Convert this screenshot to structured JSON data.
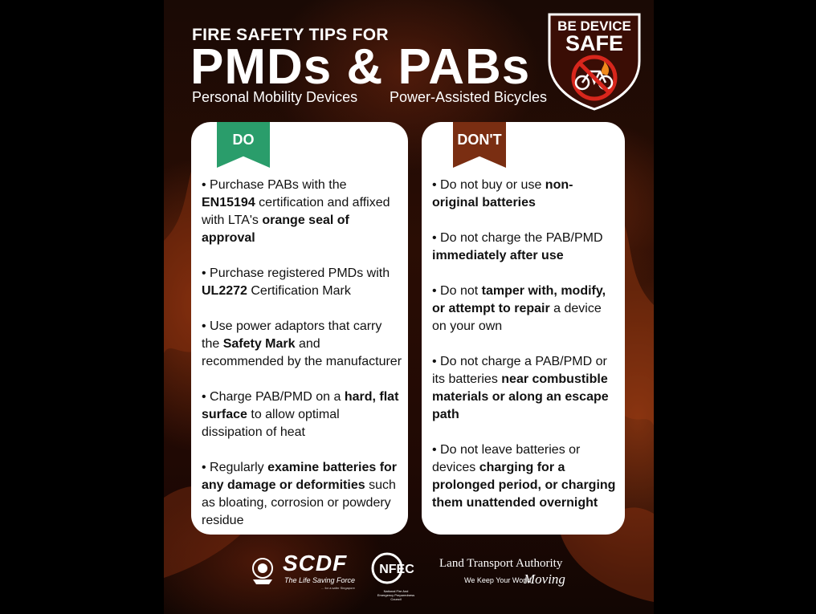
{
  "header": {
    "subtitle": "FIRE SAFETY TIPS FOR",
    "title": "PMDs & PABs",
    "caption_left": "Personal Mobility Devices",
    "caption_right": "Power-Assisted Bicycles"
  },
  "badge": {
    "line1": "BE DEVICE",
    "line2": "SAFE",
    "icon": "no-charging-bicycle-icon"
  },
  "do_card": {
    "label": "DO",
    "color": "#2a9d6b",
    "items": [
      [
        {
          "t": "• Purchase PABs with the "
        },
        {
          "t": "EN15194",
          "b": true
        },
        {
          "t": " certification and affixed with LTA's "
        },
        {
          "t": "orange seal of approval",
          "b": true
        }
      ],
      [
        {
          "t": "• Purchase registered PMDs with "
        },
        {
          "t": "UL2272",
          "b": true
        },
        {
          "t": " Certification Mark"
        }
      ],
      [
        {
          "t": "• Use power adaptors that carry the "
        },
        {
          "t": "Safety Mark",
          "b": true
        },
        {
          "t": " and recommended by the manufacturer"
        }
      ],
      [
        {
          "t": "• Charge PAB/PMD on a "
        },
        {
          "t": "hard, flat surface",
          "b": true
        },
        {
          "t": " to allow optimal dissipation of heat"
        }
      ],
      [
        {
          "t": "• Regularly "
        },
        {
          "t": "examine batteries for any damage or deformities",
          "b": true
        },
        {
          "t": " such as bloating, corrosion or powdery residue"
        }
      ]
    ]
  },
  "dont_card": {
    "label": "DON'T",
    "color": "#7a2e12",
    "items": [
      [
        {
          "t": "• Do not buy or use "
        },
        {
          "t": "non-original batteries",
          "b": true
        }
      ],
      [
        {
          "t": "• Do not charge the PAB/PMD "
        },
        {
          "t": "immediately after use",
          "b": true
        }
      ],
      [
        {
          "t": "• Do not "
        },
        {
          "t": "tamper with, modify, or attempt to repair",
          "b": true
        },
        {
          "t": " a device on your own"
        }
      ],
      [
        {
          "t": "• Do not charge a PAB/PMD or its batteries "
        },
        {
          "t": "near combustible materials or along an escape path",
          "b": true
        }
      ],
      [
        {
          "t": "• Do not leave batteries or devices "
        },
        {
          "t": "charging for a prolonged period, or charging them unattended overnight",
          "b": true
        }
      ]
    ]
  },
  "footer": {
    "scdf_emblem_icon": "scdf-crest-icon",
    "scdf_name": "SCDF",
    "scdf_tagline": "The Life Saving Force",
    "scdf_small": "... for a safer Singapore",
    "nfec_mark": "NFEC",
    "nfec_sub": "National Fire And Emergency Preparedness Council",
    "lta_name": "Land Transport Authority",
    "lta_tagline": "We Keep Your World",
    "lta_moving": "Moving"
  }
}
